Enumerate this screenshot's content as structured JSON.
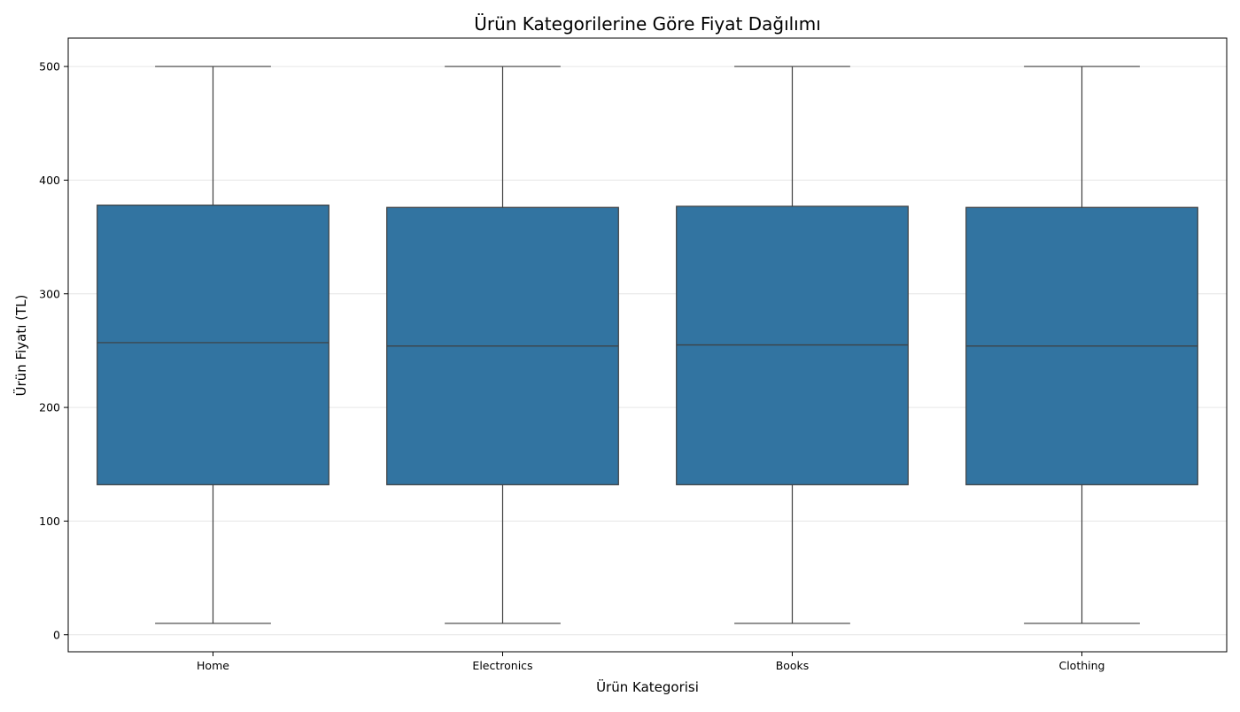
{
  "chart_data": {
    "type": "box",
    "title": "Ürün Kategorilerine Göre Fiyat Dağılımı",
    "xlabel": "Ürün Kategorisi",
    "ylabel": "Ürün Fiyatı (TL)",
    "ylim": [
      -15,
      525
    ],
    "yticks": [
      0,
      100,
      200,
      300,
      400,
      500
    ],
    "grid": "y",
    "color": "#3274a1",
    "categories": [
      "Home",
      "Electronics",
      "Books",
      "Clothing"
    ],
    "boxes": [
      {
        "category": "Home",
        "whisker_low": 10,
        "q1": 132,
        "median": 257,
        "q3": 378,
        "whisker_high": 500
      },
      {
        "category": "Electronics",
        "whisker_low": 10,
        "q1": 132,
        "median": 254,
        "q3": 376,
        "whisker_high": 500
      },
      {
        "category": "Books",
        "whisker_low": 10,
        "q1": 132,
        "median": 255,
        "q3": 377,
        "whisker_high": 500
      },
      {
        "category": "Clothing",
        "whisker_low": 10,
        "q1": 132,
        "median": 254,
        "q3": 376,
        "whisker_high": 500
      }
    ]
  }
}
